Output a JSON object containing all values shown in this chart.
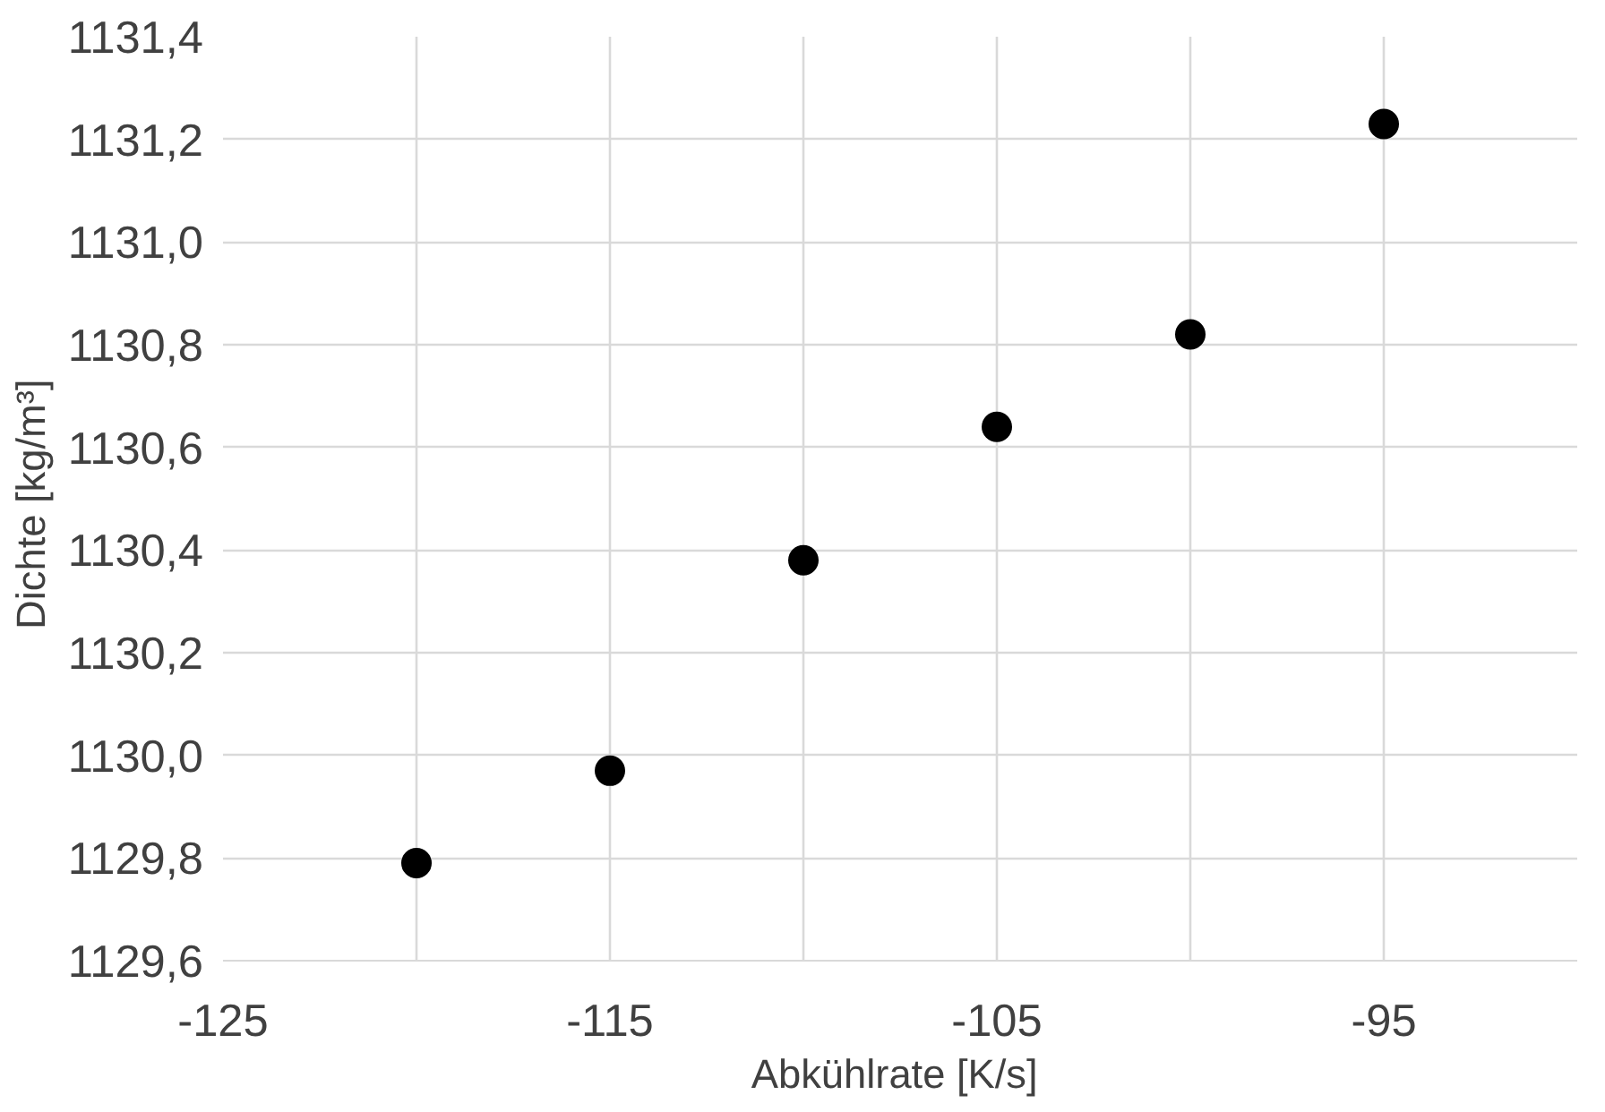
{
  "chart_data": {
    "type": "scatter",
    "xlabel": "Abkühlrate  [K/s]",
    "ylabel": "Dichte  [kg/m³]",
    "x": [
      -120,
      -115,
      -110,
      -105,
      -100,
      -95
    ],
    "series": [
      {
        "color": "#000000",
        "values": [
          1129.79,
          1129.97,
          1130.38,
          1130.64,
          1130.82,
          1131.23
        ]
      }
    ],
    "xlim": [
      -125,
      -90
    ],
    "xticks": [
      -125,
      {
        "value": -120,
        "label": null
      },
      -115,
      {
        "value": -110,
        "label": null
      },
      -105,
      {
        "value": -100,
        "label": null
      },
      -95
    ],
    "ylim": [
      1129.6,
      1131.4
    ],
    "yticks": [
      {
        "value": 1129.6,
        "label": "1129,6"
      },
      {
        "value": 1129.8,
        "label": "1129,8"
      },
      {
        "value": 1130.0,
        "label": "1130,0"
      },
      {
        "value": 1130.2,
        "label": "1130,2"
      },
      {
        "value": 1130.4,
        "label": "1130,4"
      },
      {
        "value": 1130.6,
        "label": "1130,6"
      },
      {
        "value": 1130.8,
        "label": "1130,8"
      },
      {
        "value": 1131.0,
        "label": "1131,0"
      },
      {
        "value": 1131.2,
        "label": "1131,2"
      },
      {
        "value": 1131.4,
        "label": "1131,4"
      }
    ],
    "grid": true,
    "marker": "circle"
  }
}
